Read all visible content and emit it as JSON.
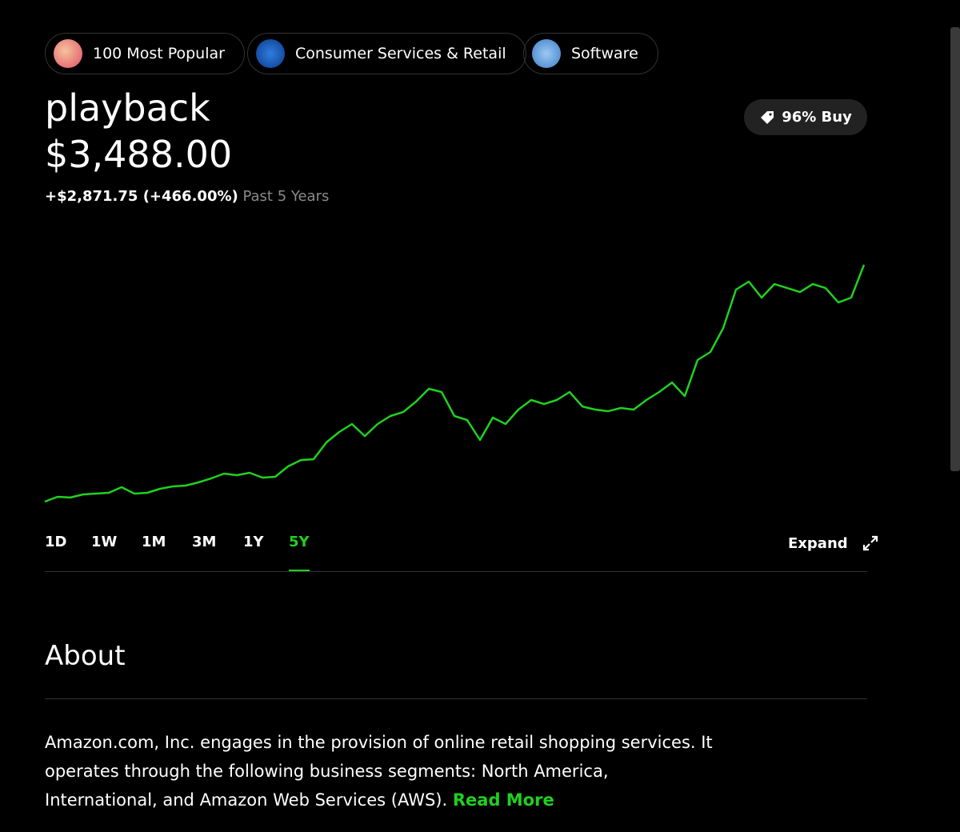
{
  "tags": [
    "100 Most Popular",
    "Consumer Services & Retail",
    "Software"
  ],
  "header": {
    "name": "playback",
    "price": "$3,488.00",
    "change": "+$2,871.75 (+466.00%)",
    "period": "Past 5 Years",
    "rating": "96% Buy"
  },
  "chart_data": {
    "type": "line",
    "color": "#1fd11f",
    "values": [
      616,
      674,
      665,
      703,
      713,
      723,
      791,
      713,
      723,
      771,
      800,
      810,
      849,
      897,
      956,
      936,
      965,
      907,
      917,
      1043,
      1120,
      1130,
      1334,
      1460,
      1557,
      1411,
      1557,
      1654,
      1702,
      1829,
      1984,
      1945,
      1654,
      1605,
      1363,
      1635,
      1557,
      1732,
      1848,
      1799,
      1848,
      1945,
      1770,
      1732,
      1712,
      1751,
      1732,
      1848,
      1945,
      2061,
      1896,
      2333,
      2430,
      2721,
      3187,
      3284,
      3090,
      3254,
      3206,
      3157,
      3254,
      3206,
      3031,
      3090,
      3488
    ]
  },
  "ranges": [
    "1D",
    "1W",
    "1M",
    "3M",
    "1Y",
    "5Y"
  ],
  "expand": "Expand",
  "about": {
    "title": "About",
    "description": "Amazon.com, Inc. engages in the provision of online retail shopping services. It operates through the following business segments: North America, International, and Amazon Web Services (AWS).",
    "link": "Read More"
  }
}
